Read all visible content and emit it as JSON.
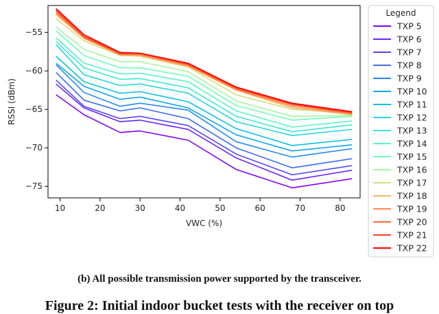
{
  "chart_data": {
    "type": "line",
    "xlabel": "VWC (%)",
    "ylabel": "RSSI (dBm)",
    "xlim": [
      7,
      85
    ],
    "ylim": [
      -76.5,
      -51.5
    ],
    "xticks": [
      10,
      20,
      30,
      40,
      50,
      60,
      70,
      80
    ],
    "yticks": [
      -75,
      -70,
      -65,
      -60,
      -55
    ],
    "grid": false,
    "legend_title": "Legend",
    "legend_position": "right-outside",
    "x": [
      9,
      16,
      25,
      30,
      42,
      54,
      68,
      83
    ],
    "series": [
      {
        "name": "TXP 5",
        "color": "#8000ff",
        "values": [
          -63.1,
          -65.7,
          -68.0,
          -67.8,
          -69.0,
          -72.8,
          -75.2,
          -74.0
        ]
      },
      {
        "name": "TXP 6",
        "color": "#6a23fe",
        "values": [
          -61.7,
          -64.8,
          -66.6,
          -66.4,
          -67.6,
          -71.3,
          -74.2,
          -72.9
        ]
      },
      {
        "name": "TXP 7",
        "color": "#5247fc",
        "values": [
          -61.2,
          -64.6,
          -66.2,
          -65.9,
          -67.1,
          -70.8,
          -73.5,
          -72.3
        ]
      },
      {
        "name": "TXP 8",
        "color": "#3b69f8",
        "values": [
          -60.2,
          -63.8,
          -65.2,
          -64.8,
          -66.2,
          -70.0,
          -72.6,
          -71.4
        ]
      },
      {
        "name": "TXP 9",
        "color": "#2389f3",
        "values": [
          -59.2,
          -62.8,
          -64.6,
          -64.2,
          -65.1,
          -69.2,
          -71.2,
          -70.1
        ]
      },
      {
        "name": "TXP 10",
        "color": "#0ca6ed",
        "values": [
          -59.0,
          -62.0,
          -63.7,
          -63.4,
          -64.8,
          -68.3,
          -70.4,
          -69.6
        ]
      },
      {
        "name": "TXP 11",
        "color": "#0bc0e5",
        "values": [
          -58.1,
          -61.4,
          -62.9,
          -62.7,
          -64.0,
          -67.5,
          -69.7,
          -68.9
        ]
      },
      {
        "name": "TXP 12",
        "color": "#24d6dc",
        "values": [
          -56.6,
          -60.5,
          -61.9,
          -61.7,
          -62.9,
          -66.6,
          -68.4,
          -67.6
        ]
      },
      {
        "name": "TXP 13",
        "color": "#3ce8d2",
        "values": [
          -56.2,
          -59.6,
          -61.1,
          -61.0,
          -62.2,
          -65.9,
          -67.9,
          -67.0
        ]
      },
      {
        "name": "TXP 14",
        "color": "#56f4c6",
        "values": [
          -55.7,
          -59.0,
          -60.4,
          -60.3,
          -61.4,
          -65.2,
          -67.3,
          -66.5
        ]
      },
      {
        "name": "TXP 15",
        "color": "#6ffdba",
        "values": [
          -54.8,
          -58.0,
          -59.6,
          -59.6,
          -60.7,
          -64.5,
          -66.4,
          -65.9
        ]
      },
      {
        "name": "TXP 16",
        "color": "#a4f79f",
        "values": [
          -54.3,
          -57.2,
          -58.8,
          -58.8,
          -60.1,
          -63.9,
          -65.9,
          -65.8
        ]
      },
      {
        "name": "TXP 17",
        "color": "#d1dd81",
        "values": [
          -53.2,
          -56.1,
          -58.0,
          -58.1,
          -59.5,
          -63.1,
          -65.0,
          -65.5
        ]
      },
      {
        "name": "TXP 18",
        "color": "#f3b563",
        "values": [
          -52.7,
          -55.8,
          -57.9,
          -58.0,
          -59.4,
          -62.5,
          -64.8,
          -65.7
        ]
      },
      {
        "name": "TXP 19",
        "color": "#ff8a4b",
        "values": [
          -52.5,
          -55.7,
          -57.9,
          -57.9,
          -59.3,
          -62.4,
          -64.6,
          -65.6
        ]
      },
      {
        "name": "TXP 20",
        "color": "#ff6b3a",
        "values": [
          -52.3,
          -55.6,
          -57.8,
          -57.8,
          -59.2,
          -62.3,
          -64.4,
          -65.5
        ]
      },
      {
        "name": "TXP 21",
        "color": "#ff3d1f",
        "values": [
          -52.1,
          -55.5,
          -57.7,
          -57.7,
          -59.1,
          -62.2,
          -64.3,
          -65.4
        ]
      },
      {
        "name": "TXP 22",
        "color": "#ff0000",
        "values": [
          -51.9,
          -55.3,
          -57.6,
          -57.7,
          -59.0,
          -62.1,
          -64.2,
          -65.3
        ]
      }
    ]
  },
  "captions": {
    "subcaption": "(b) All possible transmission power supported by the transceiver.",
    "figure": "Figure 2: Initial indoor bucket tests with the receiver on top"
  }
}
